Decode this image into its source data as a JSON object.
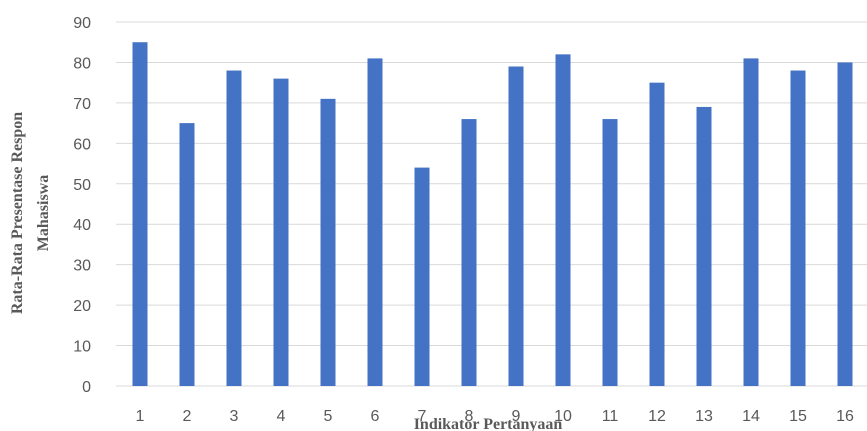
{
  "chart_data": {
    "type": "bar",
    "categories": [
      "1",
      "2",
      "3",
      "4",
      "5",
      "6",
      "7",
      "8",
      "9",
      "10",
      "11",
      "12",
      "13",
      "14",
      "15",
      "16"
    ],
    "values": [
      85,
      65,
      78,
      76,
      71,
      81,
      54,
      66,
      79,
      82,
      66,
      75,
      69,
      81,
      78,
      80
    ],
    "title": "",
    "xlabel": "Indikator Pertanyaan",
    "ylabel_lines": [
      "Rata-Rata Presentase Respon",
      "Mahasiswa"
    ],
    "ylim": [
      0,
      90
    ],
    "yticks": [
      0,
      10,
      20,
      30,
      40,
      50,
      60,
      70,
      80,
      90
    ],
    "grid": true,
    "bar_color": "#4472C4",
    "grid_color": "#D9D9D9",
    "text_color": "#595959"
  }
}
